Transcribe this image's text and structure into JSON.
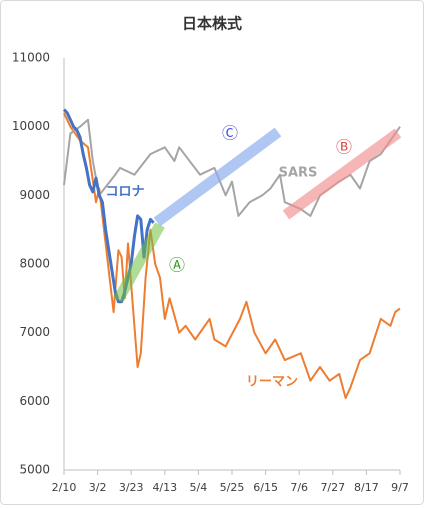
{
  "chart_data": {
    "type": "line",
    "title": "日本株式",
    "xlim": [
      0,
      210
    ],
    "xticks": [
      {
        "value": 0,
        "label": "2/10"
      },
      {
        "value": 21,
        "label": "3/2"
      },
      {
        "value": 42,
        "label": "3/23"
      },
      {
        "value": 63,
        "label": "4/13"
      },
      {
        "value": 84,
        "label": "5/4"
      },
      {
        "value": 105,
        "label": "5/25"
      },
      {
        "value": 126,
        "label": "6/15"
      },
      {
        "value": 147,
        "label": "7/6"
      },
      {
        "value": 168,
        "label": "7/27"
      },
      {
        "value": 189,
        "label": "8/17"
      },
      {
        "value": 210,
        "label": "9/7"
      }
    ],
    "ylim": [
      5000,
      11000
    ],
    "yticks": [
      5000,
      6000,
      7000,
      8000,
      9000,
      10000,
      11000
    ],
    "series": [
      {
        "name": "リーマン",
        "color": "#ed7d31",
        "x": [
          0,
          4,
          10,
          15,
          20,
          22,
          26,
          29,
          31,
          34,
          36,
          38,
          40,
          46,
          48,
          51,
          54,
          57,
          60,
          63,
          66,
          72,
          76,
          82,
          91,
          94,
          101,
          110,
          114,
          119,
          126,
          132,
          138,
          148,
          154,
          160,
          166,
          172,
          176,
          179,
          185,
          191,
          198,
          204,
          207,
          210
        ],
        "values": [
          10200,
          10000,
          9800,
          9700,
          8900,
          9100,
          8300,
          7700,
          7300,
          8200,
          8100,
          7500,
          8300,
          6500,
          6700,
          7800,
          8500,
          8000,
          7800,
          7200,
          7500,
          7000,
          7100,
          6900,
          7200,
          6900,
          6800,
          7200,
          7450,
          7000,
          6700,
          6900,
          6600,
          6700,
          6300,
          6500,
          6300,
          6400,
          6050,
          6200,
          6600,
          6700,
          7200,
          7100,
          7300,
          7350
        ]
      },
      {
        "name": "SARS",
        "color": "#a5a5a5",
        "x": [
          0,
          4,
          10,
          15,
          18,
          22,
          32,
          35,
          44,
          54,
          63,
          69,
          72,
          85,
          94,
          101,
          105,
          109,
          116,
          124,
          129,
          135,
          138,
          148,
          154,
          160,
          172,
          179,
          185,
          191,
          198,
          204,
          210
        ],
        "values": [
          9150,
          9900,
          10000,
          10100,
          9500,
          9000,
          9300,
          9400,
          9300,
          9600,
          9700,
          9500,
          9700,
          9300,
          9400,
          9000,
          9200,
          8700,
          8900,
          9000,
          9100,
          9300,
          8900,
          8800,
          8700,
          9000,
          9200,
          9300,
          9100,
          9500,
          9600,
          9800,
          10000
        ]
      },
      {
        "name": "コロナ",
        "color": "#4472c4",
        "x": [
          0,
          2,
          4,
          6,
          8,
          10,
          12,
          14,
          16,
          18,
          20,
          22,
          24,
          26,
          28,
          30,
          32,
          34,
          36,
          38,
          40,
          42,
          44,
          46,
          48,
          50,
          52,
          54,
          56
        ],
        "values": [
          10250,
          10200,
          10100,
          10000,
          9950,
          9850,
          9600,
          9400,
          9150,
          9050,
          9250,
          9000,
          8900,
          8500,
          8200,
          7900,
          7600,
          7450,
          7450,
          7600,
          7800,
          8000,
          8400,
          8700,
          8650,
          8100,
          8500,
          8650,
          8600
        ]
      }
    ],
    "annotations": [
      "Ⓐ",
      "Ⓑ",
      "Ⓒ"
    ]
  }
}
